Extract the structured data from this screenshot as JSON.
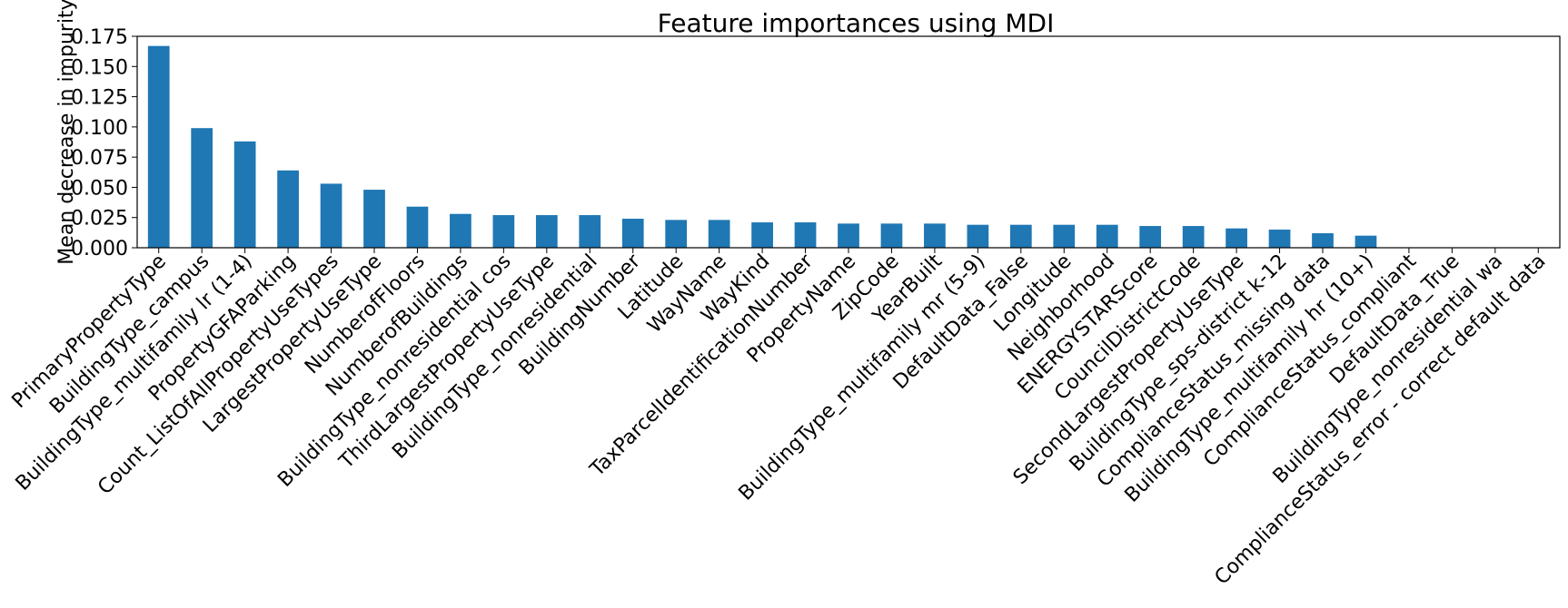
{
  "chart_data": {
    "type": "bar",
    "title": "Feature importances using MDI",
    "xlabel": "",
    "ylabel": "Mean decrease in impurity",
    "ylim": [
      0,
      0.175
    ],
    "yticks": [
      "0.000",
      "0.025",
      "0.050",
      "0.075",
      "0.100",
      "0.125",
      "0.150",
      "0.175"
    ],
    "grid": false,
    "legend": "none",
    "bar_color": "#1f77b4",
    "categories": [
      "PrimaryPropertyType",
      "BuildingType_campus",
      "BuildingType_multifamily lr (1-4)",
      "PropertyGFAParking",
      "Count_ListOfAllPropertyUseTypes",
      "LargestPropertyUseType",
      "NumberofFloors",
      "NumberofBuildings",
      "BuildingType_nonresidential cos",
      "ThirdLargestPropertyUseType",
      "BuildingType_nonresidential",
      "BuildingNumber",
      "Latitude",
      "WayName",
      "WayKind",
      "TaxParcelIdentificationNumber",
      "PropertyName",
      "ZipCode",
      "YearBuilt",
      "BuildingType_multifamily mr (5-9)",
      "DefaultData_False",
      "Longitude",
      "Neighborhood",
      "ENERGYSTARScore",
      "CouncilDistrictCode",
      "SecondLargestPropertyUseType",
      "BuildingType_sps-district k-12",
      "ComplianceStatus_missing data",
      "BuildingType_multifamily hr (10+)",
      "ComplianceStatus_compliant",
      "DefaultData_True",
      "BuildingType_nonresidential wa",
      "ComplianceStatus_error - correct default data"
    ],
    "values": [
      0.167,
      0.099,
      0.088,
      0.064,
      0.053,
      0.048,
      0.034,
      0.028,
      0.027,
      0.027,
      0.027,
      0.024,
      0.023,
      0.023,
      0.021,
      0.021,
      0.02,
      0.02,
      0.02,
      0.019,
      0.019,
      0.019,
      0.019,
      0.018,
      0.018,
      0.016,
      0.015,
      0.012,
      0.01,
      0.0,
      0.0,
      0.0,
      0.0
    ]
  }
}
